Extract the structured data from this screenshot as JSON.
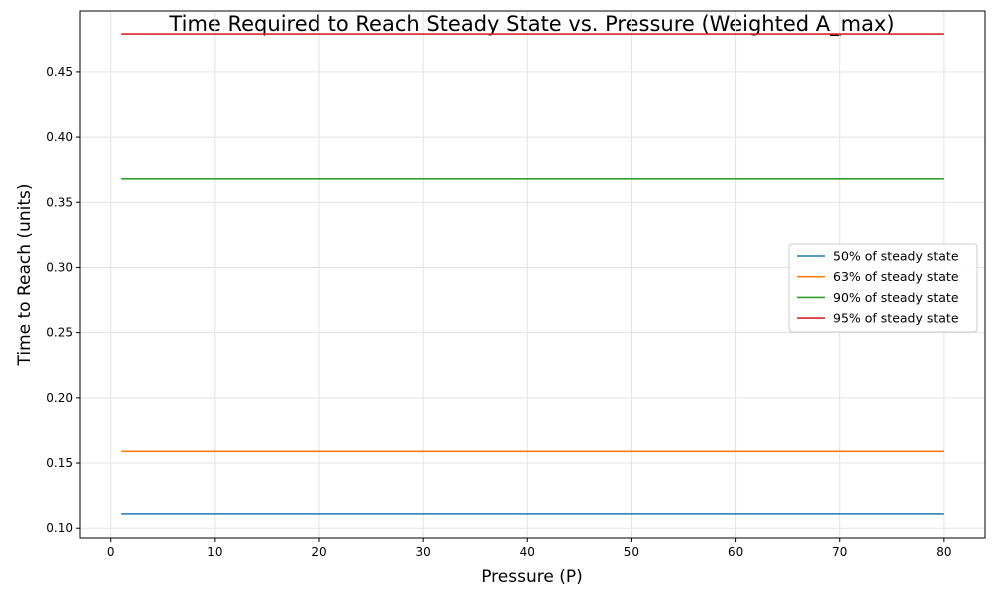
{
  "chart_data": {
    "type": "line",
    "title": "Time Required to Reach Steady State vs. Pressure (Weighted A_max)",
    "xlabel": "Pressure (P)",
    "ylabel": "Time to Reach (units)",
    "xlim": [
      -2.95,
      83.95
    ],
    "ylim": [
      0.0925,
      0.4967
    ],
    "x_ticks": [
      0,
      10,
      20,
      30,
      40,
      50,
      60,
      70,
      80
    ],
    "y_ticks": [
      0.1,
      0.15,
      0.2,
      0.25,
      0.3,
      0.35,
      0.4,
      0.45
    ],
    "y_tick_labels": [
      "0.10",
      "0.15",
      "0.20",
      "0.25",
      "0.30",
      "0.35",
      "0.40",
      "0.45"
    ],
    "grid": true,
    "legend_position": "center-right",
    "x": [
      1,
      80
    ],
    "series": [
      {
        "name": "50% of steady state",
        "color": "#1f77b4",
        "values": [
          0.111,
          0.111
        ]
      },
      {
        "name": "63% of steady state",
        "color": "#ff7f0e",
        "values": [
          0.159,
          0.159
        ]
      },
      {
        "name": "90% of steady state",
        "color": "#2ca02c",
        "values": [
          0.368,
          0.368
        ]
      },
      {
        "name": "95% of steady state",
        "color": "#d62728",
        "values": [
          0.479,
          0.479
        ]
      }
    ]
  }
}
